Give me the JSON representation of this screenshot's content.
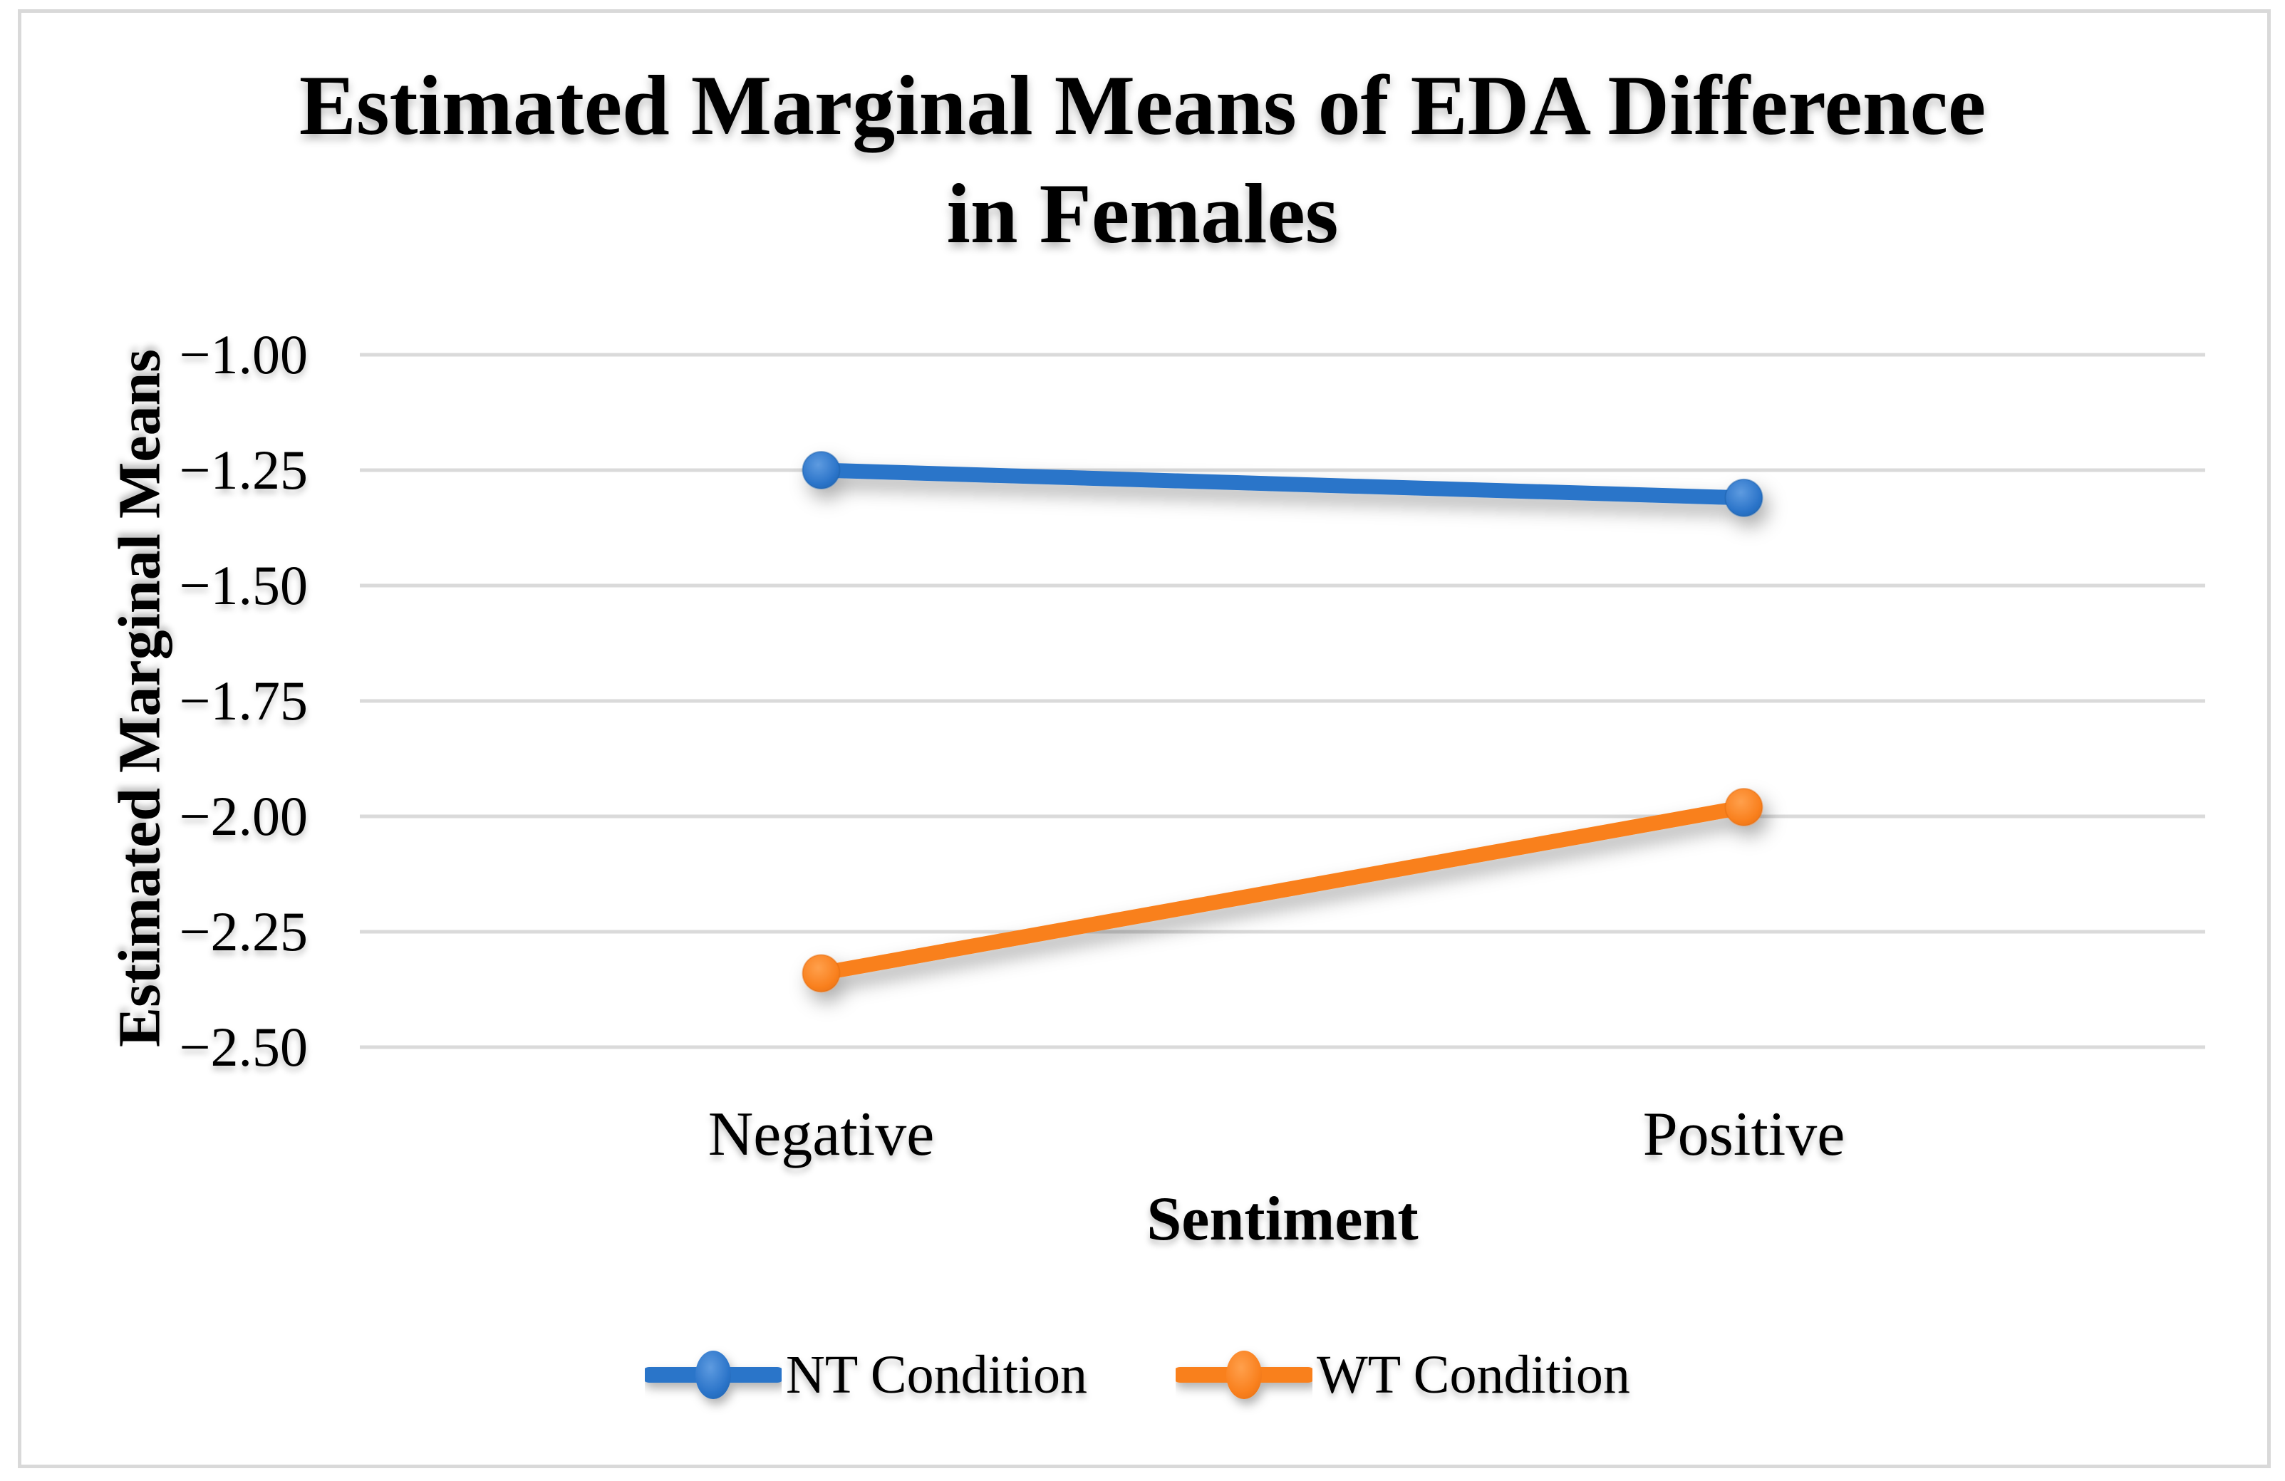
{
  "figure": {
    "title_line1": "Estimated Marginal Means of EDA Difference",
    "title_line2": "in Females",
    "y_axis_title": "Estimated Marginal Means",
    "x_axis_title": "Sentiment",
    "background": "#FFFFFF",
    "border_color": "#D9D9D9"
  },
  "chart_data": {
    "type": "line",
    "title": "Estimated Marginal Means of EDA Difference in Females",
    "xlabel": "Sentiment",
    "ylabel": "Estimated Marginal Means",
    "categories": [
      "Negative",
      "Positive"
    ],
    "series": [
      {
        "name": "NT Condition",
        "values": [
          -1.25,
          -1.31
        ],
        "color": "#2B74C9",
        "color_light": "#5E9BE0",
        "color_dark": "#1D5FA8"
      },
      {
        "name": "WT Condition",
        "values": [
          -2.34,
          -1.98
        ],
        "color": "#F9801E",
        "color_light": "#FFA04C",
        "color_dark": "#E06B10"
      }
    ],
    "ylim": [
      -2.5,
      -1.0
    ],
    "yticks": [
      {
        "label": "−1.00",
        "value": -1.0
      },
      {
        "label": "−1.25",
        "value": -1.25
      },
      {
        "label": "−1.50",
        "value": -1.5
      },
      {
        "label": "−1.75",
        "value": -1.75
      },
      {
        "label": "−2.00",
        "value": -2.0
      },
      {
        "label": "−2.25",
        "value": -2.25
      },
      {
        "label": "−2.50",
        "value": -2.5
      }
    ],
    "grid": true,
    "gridline_color": "#DADADA",
    "legend_position": "bottom"
  }
}
